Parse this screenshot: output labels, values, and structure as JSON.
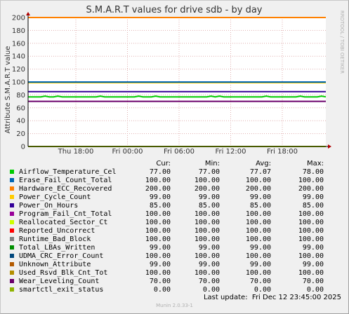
{
  "chart_data": {
    "type": "line",
    "title": "S.M.A.R.T values for drive sdb - by day",
    "ylabel": "Attribute S.M.A.R.T value",
    "xlabel": "",
    "ylim": [
      0,
      200
    ],
    "yticks": [
      0,
      20,
      40,
      60,
      80,
      100,
      120,
      140,
      160,
      180,
      200
    ],
    "xticks": [
      "Thu 18:00",
      "Fri 00:00",
      "Fri 06:00",
      "Fri 12:00",
      "Fri 18:00"
    ],
    "grid": true,
    "side_label": "RRDTOOL / TOBI OETIKER",
    "series": [
      {
        "name": "Airflow_Temperature_Cel",
        "color": "#00cc00",
        "cur": "77.00",
        "min": "77.00",
        "avg": "77.07",
        "max": "78.00"
      },
      {
        "name": "Erase_Fail_Count_Total",
        "color": "#0066b3",
        "cur": "100.00",
        "min": "100.00",
        "avg": "100.00",
        "max": "100.00"
      },
      {
        "name": "Hardware_ECC_Recovered",
        "color": "#ff8000",
        "cur": "200.00",
        "min": "200.00",
        "avg": "200.00",
        "max": "200.00"
      },
      {
        "name": "Power_Cycle_Count",
        "color": "#ffcc00",
        "cur": "99.00",
        "min": "99.00",
        "avg": "99.00",
        "max": "99.00"
      },
      {
        "name": "Power_On_Hours",
        "color": "#330099",
        "cur": "85.00",
        "min": "85.00",
        "avg": "85.00",
        "max": "85.00"
      },
      {
        "name": "Program_Fail_Cnt_Total",
        "color": "#990099",
        "cur": "100.00",
        "min": "100.00",
        "avg": "100.00",
        "max": "100.00"
      },
      {
        "name": "Reallocated_Sector_Ct",
        "color": "#ccff00",
        "cur": "100.00",
        "min": "100.00",
        "avg": "100.00",
        "max": "100.00"
      },
      {
        "name": "Reported_Uncorrect",
        "color": "#ff0000",
        "cur": "100.00",
        "min": "100.00",
        "avg": "100.00",
        "max": "100.00"
      },
      {
        "name": "Runtime_Bad_Block",
        "color": "#808080",
        "cur": "100.00",
        "min": "100.00",
        "avg": "100.00",
        "max": "100.00"
      },
      {
        "name": "Total_LBAs_Written",
        "color": "#008f00",
        "cur": "99.00",
        "min": "99.00",
        "avg": "99.00",
        "max": "99.00"
      },
      {
        "name": "UDMA_CRC_Error_Count",
        "color": "#00487d",
        "cur": "100.00",
        "min": "100.00",
        "avg": "100.00",
        "max": "100.00"
      },
      {
        "name": "Unknown_Attribute",
        "color": "#b35a00",
        "cur": "99.00",
        "min": "99.00",
        "avg": "99.00",
        "max": "99.00"
      },
      {
        "name": "Used_Rsvd_Blk_Cnt_Tot",
        "color": "#b38f00",
        "cur": "100.00",
        "min": "100.00",
        "avg": "100.00",
        "max": "100.00"
      },
      {
        "name": "Wear_Leveling_Count",
        "color": "#6b006b",
        "cur": "70.00",
        "min": "70.00",
        "avg": "70.00",
        "max": "70.00"
      },
      {
        "name": "smartctl_exit_status",
        "color": "#8fb300",
        "cur": "0.00",
        "min": "0.00",
        "avg": "0.00",
        "max": "0.00"
      }
    ]
  },
  "legend_headers": {
    "cur": "Cur:",
    "min": "Min:",
    "avg": "Avg:",
    "max": "Max:"
  },
  "last_update": "Last update:  Fri Dec 12 23:45:00 2025",
  "footer": "Munin 2.0.33-1"
}
